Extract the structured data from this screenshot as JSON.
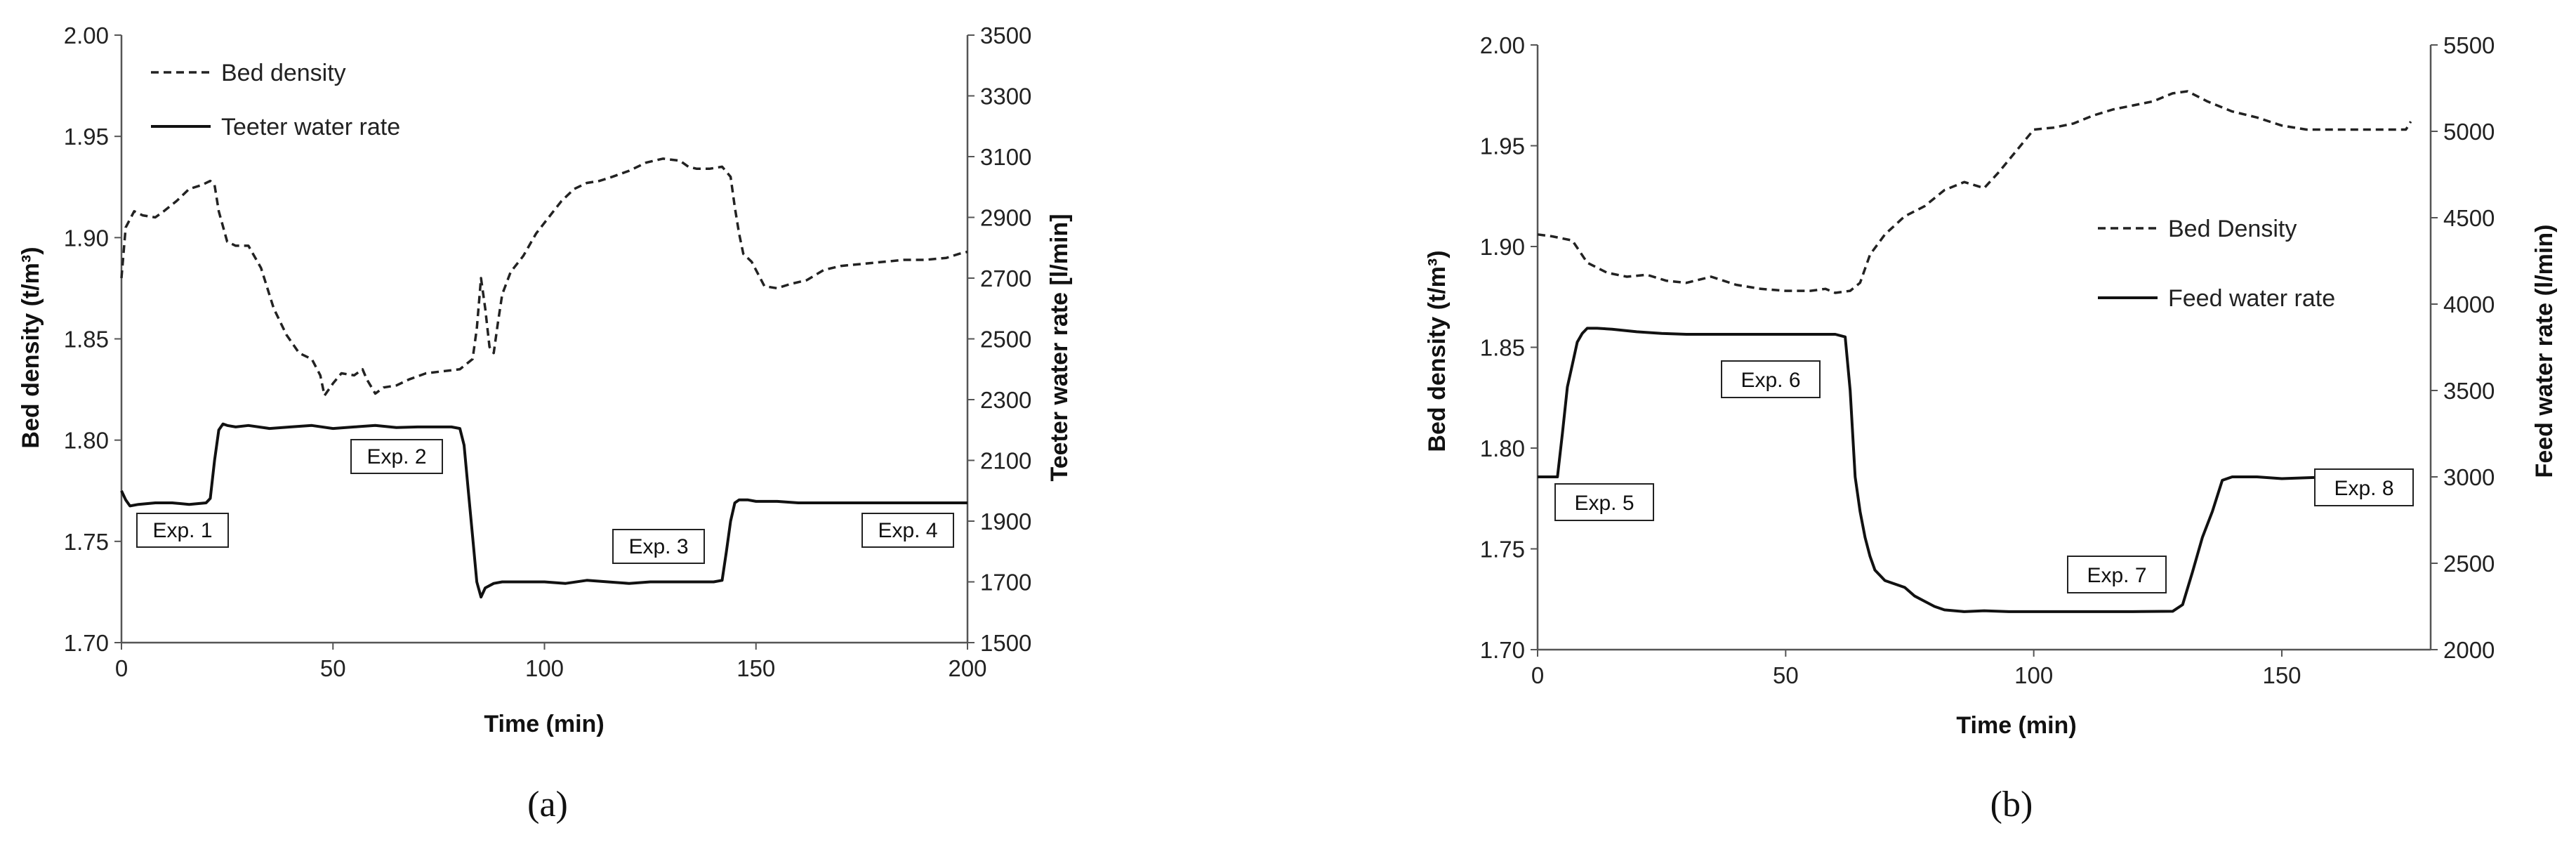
{
  "chart_data": [
    {
      "panel": "a",
      "type": "line",
      "caption": "(a)",
      "xlabel": "Time (min)",
      "ylabel_left": "Bed density (t/m³)",
      "ylabel_right": "Teeter water rate [l/min]",
      "xlim": [
        0,
        200
      ],
      "ylim_left": [
        1.7,
        2.0
      ],
      "ylim_right": [
        1500,
        3500
      ],
      "xticks": [
        "0",
        "50",
        "100",
        "150",
        "200"
      ],
      "yticks_left": [
        "1.70",
        "1.75",
        "1.80",
        "1.85",
        "1.90",
        "1.95",
        "2.00"
      ],
      "yticks_right": [
        "1500",
        "1700",
        "1900",
        "2100",
        "2300",
        "2500",
        "2700",
        "2900",
        "3100",
        "3300",
        "3500"
      ],
      "legend_position": "top-left",
      "series": [
        {
          "name": "Bed density",
          "axis": "left",
          "style": "dashed",
          "x": [
            0,
            1,
            3,
            5,
            8,
            10,
            13,
            16,
            19,
            21,
            22,
            23,
            25,
            27,
            30,
            33,
            36,
            39,
            42,
            45,
            47,
            48,
            50,
            52,
            55,
            57,
            58,
            60,
            62,
            65,
            68,
            72,
            76,
            80,
            83,
            84,
            85,
            86,
            87,
            88,
            89,
            90,
            92,
            95,
            98,
            101,
            104,
            107,
            110,
            113,
            116,
            120,
            124,
            128,
            132,
            134,
            136,
            139,
            142,
            144,
            145,
            146,
            147,
            149,
            152,
            155,
            158,
            162,
            166,
            170,
            175,
            180,
            185,
            190,
            195,
            198,
            200
          ],
          "y": [
            1.88,
            1.905,
            1.913,
            1.911,
            1.91,
            1.913,
            1.918,
            1.924,
            1.926,
            1.928,
            1.926,
            1.913,
            1.898,
            1.896,
            1.896,
            1.885,
            1.865,
            1.852,
            1.843,
            1.84,
            1.832,
            1.822,
            1.828,
            1.833,
            1.832,
            1.835,
            1.83,
            1.823,
            1.826,
            1.827,
            1.83,
            1.833,
            1.834,
            1.835,
            1.84,
            1.855,
            1.88,
            1.865,
            1.846,
            1.843,
            1.858,
            1.872,
            1.883,
            1.891,
            1.902,
            1.91,
            1.918,
            1.924,
            1.927,
            1.928,
            1.93,
            1.933,
            1.937,
            1.939,
            1.938,
            1.935,
            1.934,
            1.934,
            1.935,
            1.93,
            1.915,
            1.902,
            1.892,
            1.888,
            1.876,
            1.875,
            1.877,
            1.879,
            1.884,
            1.886,
            1.887,
            1.888,
            1.889,
            1.889,
            1.89,
            1.892,
            1.893
          ]
        },
        {
          "name": "Teeter water rate",
          "axis": "right",
          "style": "solid",
          "x": [
            0,
            1,
            2,
            4,
            8,
            12,
            16,
            20,
            21,
            22,
            23,
            24,
            25,
            27,
            30,
            35,
            40,
            45,
            50,
            55,
            60,
            65,
            70,
            75,
            78,
            80,
            81,
            82,
            83,
            84,
            85,
            86,
            88,
            90,
            95,
            100,
            105,
            110,
            115,
            120,
            125,
            130,
            135,
            140,
            142,
            143,
            144,
            145,
            146,
            148,
            150,
            155,
            160,
            170,
            180,
            190,
            200
          ],
          "y": [
            2000,
            1970,
            1950,
            1955,
            1960,
            1960,
            1955,
            1960,
            1975,
            2100,
            2200,
            2220,
            2215,
            2210,
            2215,
            2205,
            2210,
            2215,
            2205,
            2210,
            2215,
            2208,
            2210,
            2210,
            2210,
            2205,
            2150,
            2000,
            1850,
            1700,
            1650,
            1680,
            1695,
            1700,
            1700,
            1700,
            1695,
            1705,
            1700,
            1695,
            1700,
            1700,
            1700,
            1700,
            1705,
            1800,
            1900,
            1960,
            1970,
            1970,
            1965,
            1965,
            1960,
            1960,
            1960,
            1960,
            1960
          ]
        }
      ],
      "annotations": [
        "Exp. 1",
        "Exp. 2",
        "Exp. 3",
        "Exp. 4"
      ]
    },
    {
      "panel": "b",
      "type": "line",
      "caption": "(b)",
      "xlabel": "Time (min)",
      "ylabel_left": "Bed density (t/m³)",
      "ylabel_right": "Feed water rate (l/min)",
      "xlim": [
        0,
        180
      ],
      "ylim_left": [
        1.7,
        2.0
      ],
      "ylim_right": [
        2000,
        5500
      ],
      "xticks": [
        "0",
        "50",
        "100",
        "150"
      ],
      "yticks_left": [
        "1.70",
        "1.75",
        "1.80",
        "1.85",
        "1.90",
        "1.95",
        "2.00"
      ],
      "yticks_right": [
        "2000",
        "2500",
        "3000",
        "3500",
        "4000",
        "4500",
        "5000",
        "5500"
      ],
      "legend_position": "middle-right",
      "series": [
        {
          "name": "Bed Density",
          "axis": "left",
          "style": "dashed",
          "x": [
            0,
            3,
            7,
            10,
            14,
            18,
            22,
            26,
            30,
            35,
            40,
            45,
            50,
            55,
            58,
            60,
            63,
            65,
            67,
            70,
            74,
            78,
            82,
            86,
            90,
            93,
            96,
            100,
            104,
            108,
            112,
            116,
            120,
            124,
            128,
            131,
            135,
            140,
            145,
            150,
            155,
            160,
            165,
            170,
            175,
            176
          ],
          "y": [
            1.906,
            1.905,
            1.903,
            1.892,
            1.887,
            1.885,
            1.886,
            1.883,
            1.882,
            1.885,
            1.881,
            1.879,
            1.878,
            1.878,
            1.879,
            1.877,
            1.878,
            1.882,
            1.896,
            1.906,
            1.915,
            1.92,
            1.928,
            1.932,
            1.929,
            1.937,
            1.946,
            1.958,
            1.959,
            1.961,
            1.965,
            1.968,
            1.97,
            1.972,
            1.976,
            1.977,
            1.972,
            1.967,
            1.964,
            1.96,
            1.958,
            1.958,
            1.958,
            1.958,
            1.958,
            1.962
          ]
        },
        {
          "name": "Feed water rate",
          "axis": "right",
          "style": "solid",
          "x": [
            0,
            4,
            5,
            6,
            7,
            8,
            9,
            10,
            12,
            15,
            20,
            25,
            30,
            40,
            50,
            55,
            60,
            62,
            63,
            64,
            65,
            66,
            67,
            68,
            70,
            72,
            74,
            76,
            78,
            80,
            82,
            84,
            86,
            90,
            95,
            100,
            110,
            120,
            128,
            130,
            132,
            134,
            136,
            138,
            140,
            145,
            150,
            160,
            170,
            176
          ],
          "y": [
            3000,
            3000,
            3250,
            3520,
            3650,
            3780,
            3830,
            3860,
            3860,
            3855,
            3840,
            3830,
            3825,
            3825,
            3825,
            3825,
            3825,
            3810,
            3500,
            3000,
            2800,
            2650,
            2540,
            2460,
            2400,
            2380,
            2360,
            2310,
            2280,
            2250,
            2230,
            2225,
            2220,
            2225,
            2220,
            2220,
            2220,
            2220,
            2222,
            2260,
            2450,
            2650,
            2800,
            2980,
            3000,
            3000,
            2990,
            3000,
            2990,
            3000
          ]
        }
      ],
      "annotations": [
        "Exp. 5",
        "Exp. 6",
        "Exp. 7",
        "Exp. 8"
      ]
    }
  ]
}
